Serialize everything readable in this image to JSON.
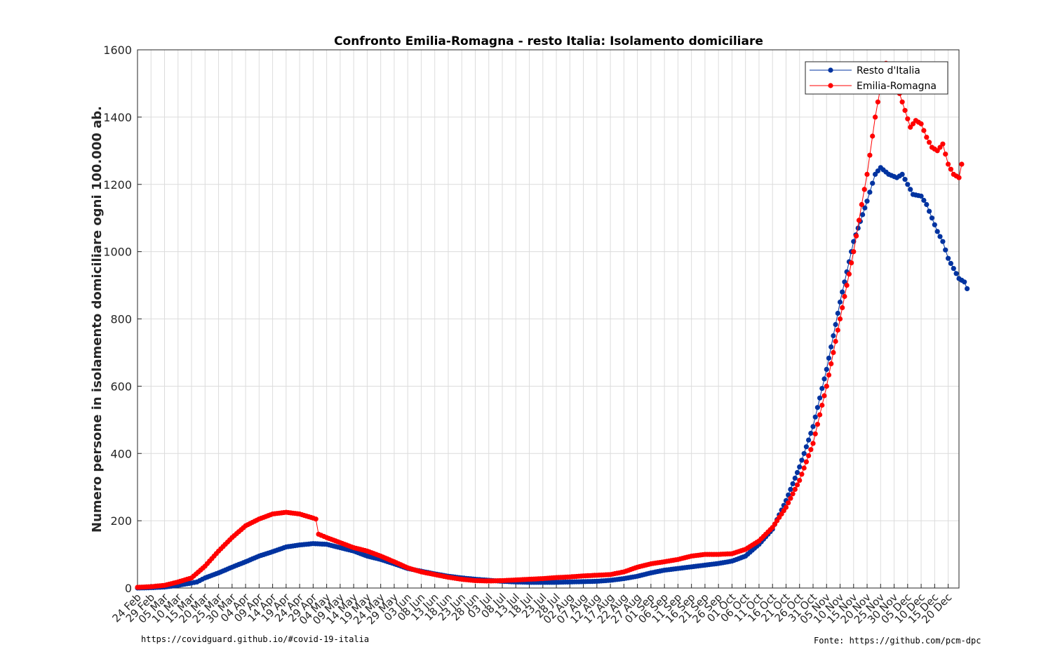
{
  "chart_data": {
    "type": "line",
    "title": "Confronto Emilia-Romagna - resto Italia: Isolamento domiciliare",
    "xlabel": "",
    "ylabel": "Numero persone in isolamento domiciliare ogni 100.000 ab.",
    "ylim": [
      0,
      1600
    ],
    "yticks": [
      0,
      200,
      400,
      600,
      800,
      1000,
      1200,
      1400,
      1600
    ],
    "xlim": [
      "2020-02-24",
      "2020-12-24"
    ],
    "x_tick_labels": [
      "24 Feb",
      "29 Feb",
      "05 Mar",
      "10 Mar",
      "15 Mar",
      "20 Mar",
      "25 Mar",
      "30 Mar",
      "04 Apr",
      "09 Apr",
      "14 Apr",
      "19 Apr",
      "24 Apr",
      "29 Apr",
      "04 May",
      "09 May",
      "14 May",
      "19 May",
      "24 May",
      "29 May",
      "03 Jun",
      "08 Jun",
      "13 Jun",
      "18 Jun",
      "23 Jun",
      "28 Jun",
      "03 Jul",
      "08 Jul",
      "13 Jul",
      "18 Jul",
      "23 Jul",
      "28 Jul",
      "02 Aug",
      "07 Aug",
      "12 Aug",
      "17 Aug",
      "22 Aug",
      "27 Aug",
      "01 Sep",
      "06 Sep",
      "11 Sep",
      "16 Sep",
      "21 Sep",
      "26 Sep",
      "01 Oct",
      "06 Oct",
      "11 Oct",
      "16 Oct",
      "21 Oct",
      "26 Oct",
      "31 Oct",
      "05 Nov",
      "10 Nov",
      "15 Nov",
      "20 Nov",
      "25 Nov",
      "30 Nov",
      "05 Dec",
      "10 Dec",
      "15 Dec",
      "20 Dec"
    ],
    "grid": true,
    "legend_position": "top-right",
    "series": [
      {
        "name": "Resto d'Italia",
        "color": "#0033a0",
        "points": [
          [
            "2020-02-24",
            0
          ],
          [
            "2020-02-29",
            1
          ],
          [
            "2020-03-05",
            3
          ],
          [
            "2020-03-10",
            8
          ],
          [
            "2020-03-15",
            15
          ],
          [
            "2020-03-17",
            18
          ],
          [
            "2020-03-20",
            30
          ],
          [
            "2020-03-25",
            45
          ],
          [
            "2020-03-30",
            62
          ],
          [
            "2020-04-04",
            78
          ],
          [
            "2020-04-09",
            95
          ],
          [
            "2020-04-14",
            108
          ],
          [
            "2020-04-19",
            122
          ],
          [
            "2020-04-24",
            128
          ],
          [
            "2020-04-29",
            132
          ],
          [
            "2020-05-04",
            130
          ],
          [
            "2020-05-09",
            120
          ],
          [
            "2020-05-14",
            110
          ],
          [
            "2020-05-19",
            95
          ],
          [
            "2020-05-24",
            85
          ],
          [
            "2020-05-29",
            72
          ],
          [
            "2020-06-03",
            58
          ],
          [
            "2020-06-08",
            50
          ],
          [
            "2020-06-13",
            42
          ],
          [
            "2020-06-18",
            35
          ],
          [
            "2020-06-23",
            30
          ],
          [
            "2020-06-28",
            26
          ],
          [
            "2020-07-03",
            23
          ],
          [
            "2020-07-08",
            20
          ],
          [
            "2020-07-13",
            18
          ],
          [
            "2020-07-18",
            17
          ],
          [
            "2020-07-23",
            17
          ],
          [
            "2020-07-28",
            17
          ],
          [
            "2020-08-02",
            18
          ],
          [
            "2020-08-07",
            19
          ],
          [
            "2020-08-12",
            20
          ],
          [
            "2020-08-17",
            23
          ],
          [
            "2020-08-22",
            28
          ],
          [
            "2020-08-27",
            35
          ],
          [
            "2020-09-01",
            45
          ],
          [
            "2020-09-06",
            53
          ],
          [
            "2020-09-11",
            58
          ],
          [
            "2020-09-16",
            63
          ],
          [
            "2020-09-21",
            68
          ],
          [
            "2020-09-26",
            73
          ],
          [
            "2020-10-01",
            80
          ],
          [
            "2020-10-06",
            95
          ],
          [
            "2020-10-11",
            130
          ],
          [
            "2020-10-16",
            175
          ],
          [
            "2020-10-21",
            260
          ],
          [
            "2020-10-26",
            360
          ],
          [
            "2020-10-31",
            480
          ],
          [
            "2020-11-05",
            650
          ],
          [
            "2020-11-10",
            850
          ],
          [
            "2020-11-15",
            1030
          ],
          [
            "2020-11-20",
            1150
          ],
          [
            "2020-11-23",
            1230
          ],
          [
            "2020-11-25",
            1250
          ],
          [
            "2020-11-28",
            1230
          ],
          [
            "2020-12-01",
            1220
          ],
          [
            "2020-12-03",
            1230
          ],
          [
            "2020-12-05",
            1200
          ],
          [
            "2020-12-07",
            1170
          ],
          [
            "2020-12-10",
            1165
          ],
          [
            "2020-12-12",
            1140
          ],
          [
            "2020-12-14",
            1100
          ],
          [
            "2020-12-16",
            1060
          ],
          [
            "2020-12-18",
            1030
          ],
          [
            "2020-12-20",
            980
          ],
          [
            "2020-12-22",
            950
          ],
          [
            "2020-12-24",
            920
          ],
          [
            "2020-12-26",
            910
          ],
          [
            "2020-12-27",
            890
          ]
        ]
      },
      {
        "name": "Emilia-Romagna",
        "color": "#ff0000",
        "points": [
          [
            "2020-02-24",
            2
          ],
          [
            "2020-02-29",
            4
          ],
          [
            "2020-03-05",
            8
          ],
          [
            "2020-03-10",
            18
          ],
          [
            "2020-03-15",
            30
          ],
          [
            "2020-03-20",
            65
          ],
          [
            "2020-03-25",
            110
          ],
          [
            "2020-03-30",
            150
          ],
          [
            "2020-04-04",
            185
          ],
          [
            "2020-04-09",
            205
          ],
          [
            "2020-04-14",
            220
          ],
          [
            "2020-04-19",
            225
          ],
          [
            "2020-04-24",
            220
          ],
          [
            "2020-04-29",
            208
          ],
          [
            "2020-04-30",
            205
          ],
          [
            "2020-05-01",
            160
          ],
          [
            "2020-05-04",
            150
          ],
          [
            "2020-05-09",
            135
          ],
          [
            "2020-05-14",
            120
          ],
          [
            "2020-05-19",
            110
          ],
          [
            "2020-05-24",
            95
          ],
          [
            "2020-05-29",
            78
          ],
          [
            "2020-06-03",
            60
          ],
          [
            "2020-06-08",
            48
          ],
          [
            "2020-06-13",
            40
          ],
          [
            "2020-06-18",
            32
          ],
          [
            "2020-06-23",
            26
          ],
          [
            "2020-06-28",
            22
          ],
          [
            "2020-07-03",
            21
          ],
          [
            "2020-07-08",
            22
          ],
          [
            "2020-07-13",
            24
          ],
          [
            "2020-07-18",
            26
          ],
          [
            "2020-07-23",
            28
          ],
          [
            "2020-07-28",
            31
          ],
          [
            "2020-08-02",
            33
          ],
          [
            "2020-08-07",
            36
          ],
          [
            "2020-08-12",
            38
          ],
          [
            "2020-08-17",
            40
          ],
          [
            "2020-08-22",
            48
          ],
          [
            "2020-08-27",
            62
          ],
          [
            "2020-09-01",
            72
          ],
          [
            "2020-09-06",
            78
          ],
          [
            "2020-09-11",
            85
          ],
          [
            "2020-09-16",
            95
          ],
          [
            "2020-09-21",
            100
          ],
          [
            "2020-09-26",
            100
          ],
          [
            "2020-10-01",
            102
          ],
          [
            "2020-10-06",
            115
          ],
          [
            "2020-10-11",
            140
          ],
          [
            "2020-10-16",
            180
          ],
          [
            "2020-10-21",
            240
          ],
          [
            "2020-10-26",
            320
          ],
          [
            "2020-10-31",
            430
          ],
          [
            "2020-11-05",
            600
          ],
          [
            "2020-11-10",
            800
          ],
          [
            "2020-11-15",
            1000
          ],
          [
            "2020-11-18",
            1140
          ],
          [
            "2020-11-20",
            1230
          ],
          [
            "2020-11-23",
            1400
          ],
          [
            "2020-11-25",
            1490
          ],
          [
            "2020-11-27",
            1560
          ],
          [
            "2020-11-30",
            1520
          ],
          [
            "2020-12-02",
            1470
          ],
          [
            "2020-12-04",
            1420
          ],
          [
            "2020-12-06",
            1370
          ],
          [
            "2020-12-08",
            1390
          ],
          [
            "2020-12-10",
            1380
          ],
          [
            "2020-12-12",
            1340
          ],
          [
            "2020-12-14",
            1310
          ],
          [
            "2020-12-16",
            1300
          ],
          [
            "2020-12-18",
            1320
          ],
          [
            "2020-12-20",
            1260
          ],
          [
            "2020-12-22",
            1230
          ],
          [
            "2020-12-24",
            1220
          ],
          [
            "2020-12-25",
            1260
          ]
        ]
      }
    ]
  },
  "footer": {
    "left": "https://covidguard.github.io/#covid-19-italia",
    "right": "Fonte: https://github.com/pcm-dpc"
  }
}
